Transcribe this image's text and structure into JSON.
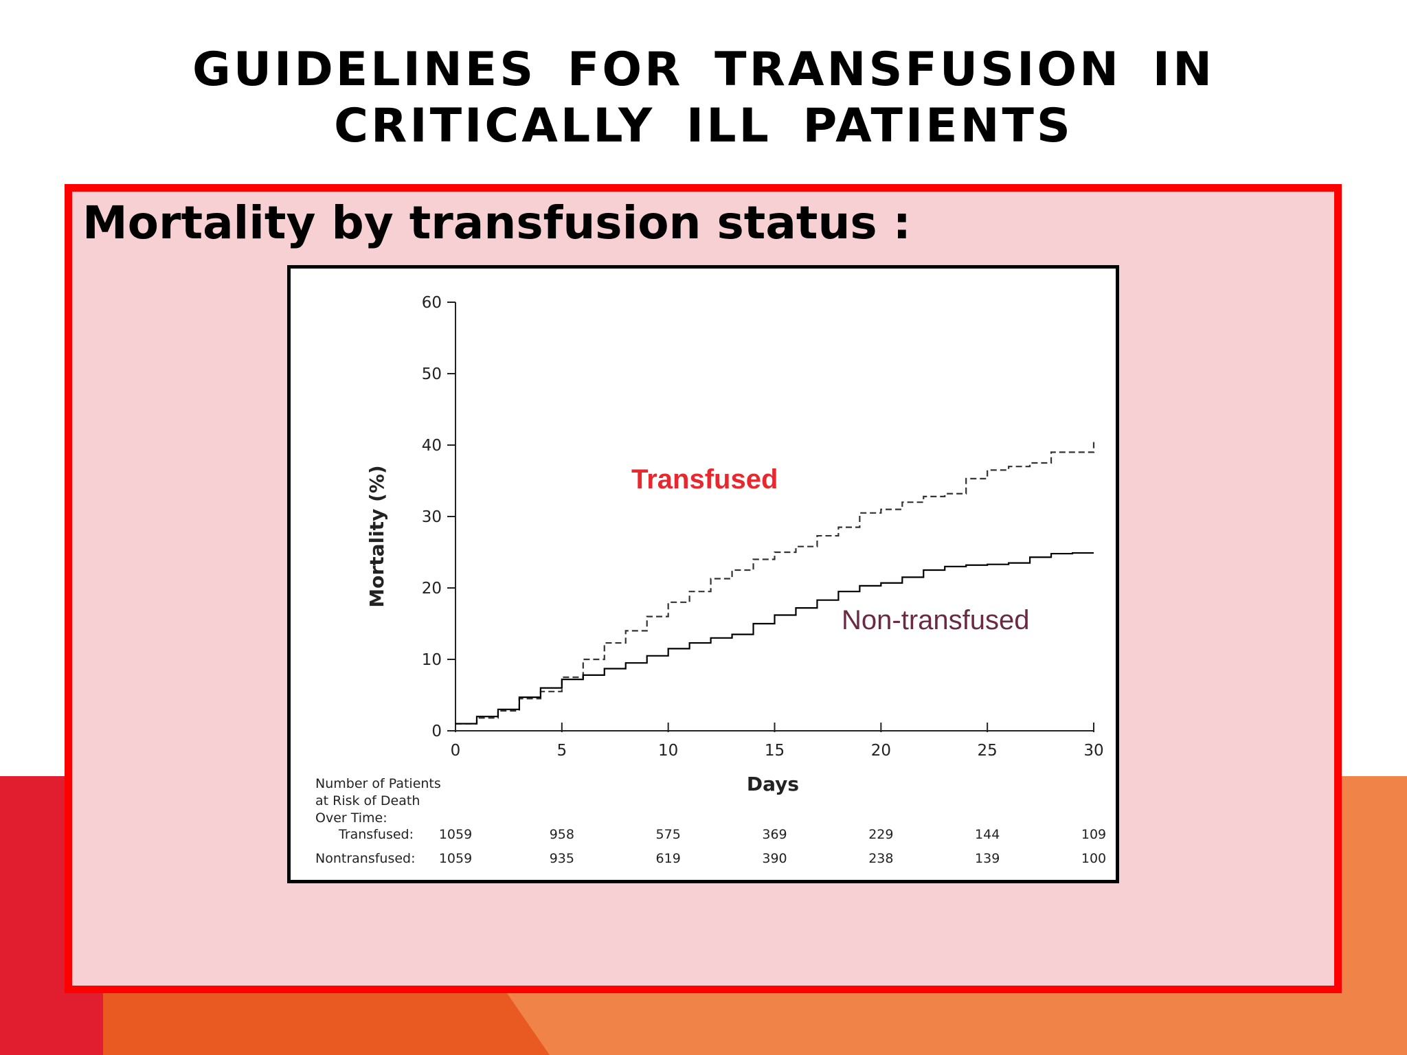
{
  "slide": {
    "title_line1": "GUIDELINES  FOR  TRANSFUSION  IN",
    "title_line2": "CRITICALLY  ILL  PATIENTS",
    "subtitle": "Mortality by transfusion status :",
    "colors": {
      "panel_border": "#ff0000",
      "panel_fill": "#f7d0d4",
      "accent_red": "#e01e30",
      "accent_orange": "#f08348"
    }
  },
  "chart_data": {
    "type": "line",
    "step": true,
    "xlabel": "Days",
    "ylabel": "Mortality (%)",
    "xlim": [
      0,
      30
    ],
    "ylim": [
      0,
      60
    ],
    "xticks": [
      0,
      5,
      10,
      15,
      20,
      25,
      30
    ],
    "yticks": [
      0,
      10,
      20,
      30,
      40,
      50,
      60
    ],
    "grid": false,
    "series": [
      {
        "name": "Transfused",
        "style": "dashed",
        "color": "#333333",
        "label_color": "#e8282e",
        "x": [
          0,
          1,
          2,
          3,
          4,
          5,
          6,
          7,
          8,
          9,
          10,
          11,
          12,
          13,
          14,
          15,
          16,
          17,
          18,
          19,
          20,
          21,
          22,
          23,
          24,
          25,
          26,
          27,
          28,
          29,
          30
        ],
        "y": [
          1,
          1.8,
          2.8,
          4.5,
          5.5,
          7.5,
          10,
          12.3,
          14,
          16,
          18,
          19.5,
          21.3,
          22.5,
          24,
          25,
          25.8,
          27.3,
          28.5,
          30.5,
          31,
          32,
          32.8,
          33.2,
          35.3,
          36.5,
          37,
          37.5,
          39,
          39,
          40.5
        ]
      },
      {
        "name": "Non-transfused",
        "style": "solid",
        "color": "#000000",
        "label_color": "#6a2a44",
        "x": [
          0,
          1,
          2,
          3,
          4,
          5,
          6,
          7,
          8,
          9,
          10,
          11,
          12,
          13,
          14,
          15,
          16,
          17,
          18,
          19,
          20,
          21,
          22,
          23,
          24,
          25,
          26,
          27,
          28,
          29,
          30
        ],
        "y": [
          1,
          2,
          3,
          4.7,
          6,
          7.2,
          7.8,
          8.7,
          9.5,
          10.5,
          11.5,
          12.3,
          13,
          13.5,
          15,
          16.2,
          17.2,
          18.3,
          19.5,
          20.3,
          20.7,
          21.5,
          22.5,
          23,
          23.2,
          23.3,
          23.5,
          24.3,
          24.8,
          24.9,
          24.9
        ]
      }
    ],
    "annotations": [
      "Transfused",
      "Non-transfused"
    ],
    "risk_table": {
      "header_lines": [
        "Number of Patients",
        "at Risk of Death",
        "Over Time:"
      ],
      "days": [
        0,
        5,
        10,
        15,
        20,
        25,
        30
      ],
      "rows": [
        {
          "label": "Transfused:",
          "values": [
            "1059",
            "958",
            "575",
            "369",
            "229",
            "144",
            "109"
          ]
        },
        {
          "label": "Nontransfused:",
          "values": [
            "1059",
            "935",
            "619",
            "390",
            "238",
            "139",
            "100"
          ]
        }
      ]
    }
  }
}
